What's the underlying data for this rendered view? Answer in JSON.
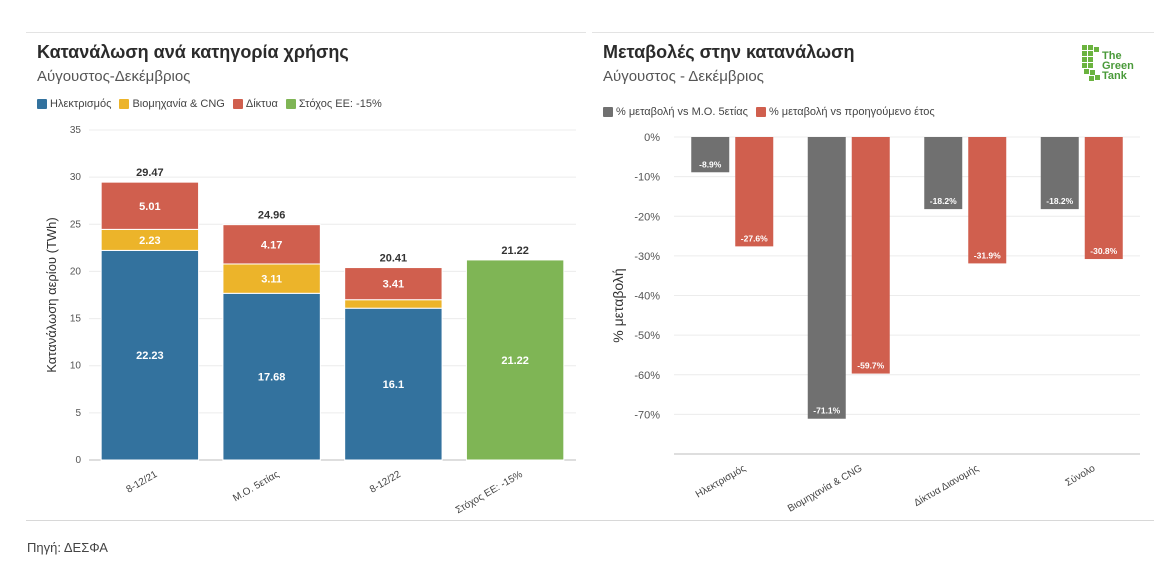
{
  "left_chart": {
    "title": "Κατανάλωση ανά κατηγορία χρήσης",
    "subtitle": "Αύγουστος-Δεκέμβριος"
  },
  "right_chart": {
    "title": "Μεταβολές στην κατανάλωση",
    "subtitle": "Αύγουστος - Δεκέμβριος"
  },
  "logo": {
    "lines": [
      "The",
      "Green",
      "Tank"
    ]
  },
  "footer": {
    "source": "Πηγή: ΔΕΣΦΑ"
  },
  "chart_data": [
    {
      "type": "bar",
      "stacked": true,
      "title": "Κατανάλωση ανά κατηγορία χρήσης",
      "subtitle": "Αύγουστος-Δεκέμβριος",
      "xlabel": "",
      "ylabel": "Κατανάλωση αερίου (TWh)",
      "ylim": [
        0,
        35
      ],
      "yticks": [
        0,
        5,
        10,
        15,
        20,
        25,
        30,
        35
      ],
      "grid": true,
      "legend_position": "top-left",
      "categories": [
        "8-12/21",
        "Μ.Ο. 5ετίας",
        "8-12/22",
        "Στόχος ΕΕ: -15%"
      ],
      "series": [
        {
          "name": "Ηλεκτρισμός",
          "color": "#33729e",
          "values": [
            22.23,
            17.68,
            16.1,
            null
          ],
          "labels": [
            "22.23",
            "17.68",
            "16.1",
            ""
          ]
        },
        {
          "name": "Βιομηχανία & CNG",
          "color": "#ecb42a",
          "values": [
            2.23,
            3.11,
            0.9,
            null
          ],
          "labels": [
            "2.23",
            "3.11",
            "",
            ""
          ]
        },
        {
          "name": "Δίκτυα",
          "color": "#d05f4e",
          "values": [
            5.01,
            4.17,
            3.41,
            null
          ],
          "labels": [
            "5.01",
            "4.17",
            "3.41",
            ""
          ]
        },
        {
          "name": "Στόχος ΕΕ: -15%",
          "color": "#7fb555",
          "values": [
            null,
            null,
            null,
            21.22
          ],
          "labels": [
            "",
            "",
            "",
            "21.22"
          ]
        }
      ],
      "totals": [
        "29.47",
        "24.96",
        "20.41",
        "21.22"
      ]
    },
    {
      "type": "bar",
      "title": "Μεταβολές στην κατανάλωση",
      "subtitle": "Αύγουστος - Δεκέμβριος",
      "xlabel": "",
      "ylabel": "% μεταβολή",
      "ylim": [
        -80,
        0
      ],
      "yticks": [
        0,
        -10,
        -20,
        -30,
        -40,
        -50,
        -60,
        -70
      ],
      "ytick_labels": [
        "0%",
        "-10%",
        "-20%",
        "-30%",
        "-40%",
        "-50%",
        "-60%",
        "-70%"
      ],
      "grid": true,
      "legend_position": "top-left",
      "categories": [
        "Ηλεκτρισμός",
        "Βιομηχανία & CNG",
        "Δίκτυα Διανομής",
        "Σύνολο"
      ],
      "series": [
        {
          "name": "% μεταβολή vs Μ.Ο. 5ετίας",
          "color": "#707070",
          "values": [
            -8.9,
            -71.1,
            -18.2,
            -18.2
          ],
          "labels": [
            "-8.9%",
            "-71.1%",
            "-18.2%",
            "-18.2%"
          ]
        },
        {
          "name": "% μεταβολή vs προηγούμενο έτος",
          "color": "#d05f4e",
          "values": [
            -27.6,
            -59.7,
            -31.9,
            -30.8
          ],
          "labels": [
            "-27.6%",
            "-59.7%",
            "-31.9%",
            "-30.8%"
          ]
        }
      ]
    }
  ]
}
